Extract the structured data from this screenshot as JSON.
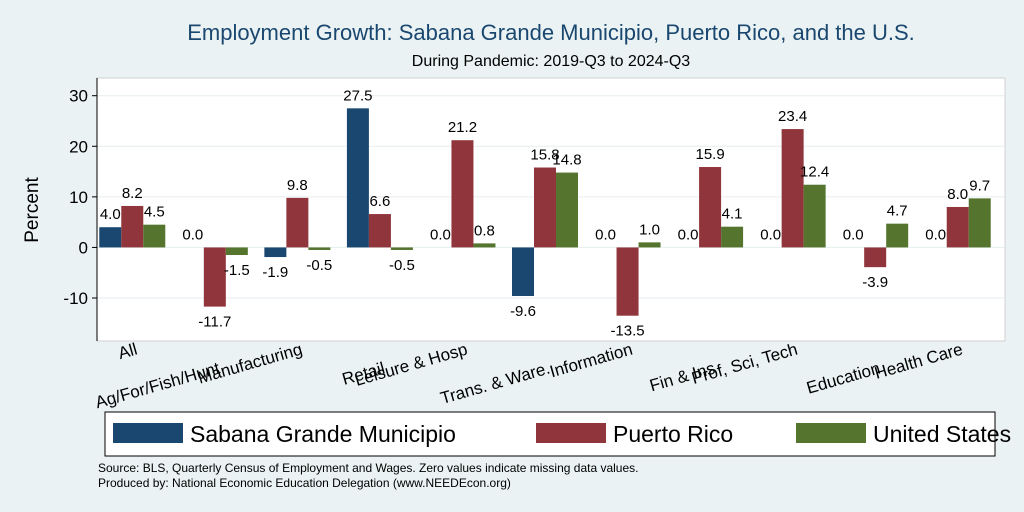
{
  "chart_data": {
    "type": "bar",
    "title": "Employment Growth: Sabana Grande Municipio, Puerto Rico, and the U.S.",
    "subtitle": "During Pandemic: 2019-Q3 to 2024-Q3",
    "ylabel": "Percent",
    "xlabel": "",
    "ylim": [
      -18.5,
      33.5
    ],
    "yticks": [
      -10,
      0,
      10,
      20,
      30
    ],
    "grid": true,
    "legend_position": "bottom",
    "categories": [
      "All",
      "Ag/For/Fish/Hunt",
      "Manufacturing",
      "Retail",
      "Leisure & Hosp",
      "Trans. & Ware.",
      "Information",
      "Fin & Ins",
      "Prof, Sci, Tech",
      "Education",
      "Health Care"
    ],
    "series": [
      {
        "name": "Sabana Grande Municipio",
        "color": "#1a476f",
        "values": [
          4.0,
          0.0,
          -1.9,
          27.5,
          0.0,
          -9.6,
          0.0,
          0.0,
          0.0,
          0.0,
          0.0
        ],
        "labels": [
          "4.0",
          "0.0",
          "-1.9",
          "27.5",
          "0.0",
          "-9.6",
          "0.0",
          "0.0",
          "0.0",
          "0.0",
          "0.0"
        ]
      },
      {
        "name": "Puerto Rico",
        "color": "#90353b",
        "values": [
          8.2,
          -11.7,
          9.8,
          6.6,
          21.2,
          15.8,
          -13.5,
          15.9,
          23.4,
          -3.9,
          8.0
        ],
        "labels": [
          "8.2",
          "-11.7",
          "9.8",
          "6.6",
          "21.2",
          "15.8",
          "-13.5",
          "15.9",
          "23.4",
          "-3.9",
          "8.0"
        ]
      },
      {
        "name": "United States",
        "color": "#55752f",
        "values": [
          4.5,
          -1.5,
          -0.5,
          -0.5,
          0.8,
          14.8,
          1.0,
          4.1,
          12.4,
          4.7,
          9.7
        ],
        "labels": [
          "4.5",
          "-1.5",
          "-0.5",
          "-0.5",
          "0.8",
          "14.8",
          "1.0",
          "4.1",
          "12.4",
          "4.7",
          "9.7"
        ]
      }
    ],
    "notes": [
      "Source: BLS, Quarterly Census of Employment and Wages. Zero values indicate missing data values.",
      "Produced by: National Economic Education Delegation (www.NEEDEcon.org)"
    ]
  }
}
